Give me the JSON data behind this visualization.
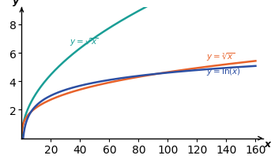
{
  "title": "",
  "xlabel": "x",
  "ylabel": "y",
  "xlim": [
    0,
    165
  ],
  "ylim": [
    0,
    9.2
  ],
  "xticks": [
    20,
    40,
    60,
    80,
    100,
    120,
    140,
    160
  ],
  "yticks": [
    2,
    4,
    6,
    8
  ],
  "sqrt_color": "#1a9e96",
  "cbrt_color": "#e8622a",
  "ln_color": "#2c4fa3",
  "background": "#ffffff",
  "x_start": 0.05,
  "x_end": 160,
  "figsize": [
    3.43,
    2.03
  ],
  "dpi": 100
}
